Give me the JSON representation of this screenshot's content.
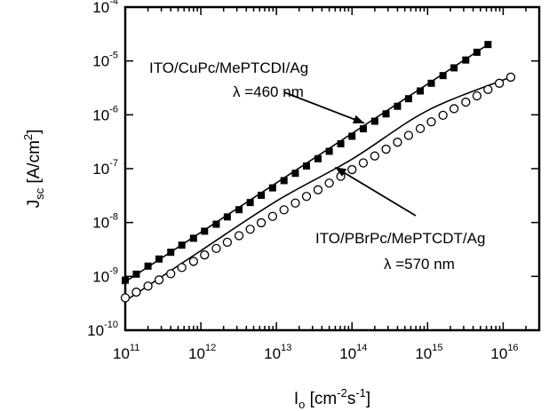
{
  "chart_data": {
    "type": "scatter",
    "xscale": "log",
    "yscale": "log",
    "xlim": [
      100000000000.0,
      3e+16
    ],
    "ylim": [
      1e-10,
      0.0001
    ],
    "grid": false,
    "xlabel": {
      "main": "I",
      "sub": "o",
      "text1": " [cm",
      "sup1": "-2",
      "text2": "s",
      "sup2": "-1",
      "text3": "]"
    },
    "ylabel": {
      "main": "J",
      "sub": "sc",
      "text1": " [A/cm",
      "sup1": "2",
      "text2": "]"
    },
    "x_ticks": [
      {
        "base": "10",
        "exp": "11",
        "value": 100000000000.0
      },
      {
        "base": "10",
        "exp": "12",
        "value": 1000000000000.0
      },
      {
        "base": "10",
        "exp": "13",
        "value": 10000000000000.0
      },
      {
        "base": "10",
        "exp": "14",
        "value": 100000000000000.0
      },
      {
        "base": "10",
        "exp": "15",
        "value": 1000000000000000.0
      },
      {
        "base": "10",
        "exp": "16",
        "value": 1e+16
      }
    ],
    "y_ticks": [
      {
        "base": "10",
        "exp": "-10",
        "value": 1e-10
      },
      {
        "base": "10",
        "exp": "-9",
        "value": 1e-09
      },
      {
        "base": "10",
        "exp": "-8",
        "value": 1e-08
      },
      {
        "base": "10",
        "exp": "-7",
        "value": 1e-07
      },
      {
        "base": "10",
        "exp": "-6",
        "value": 1e-06
      },
      {
        "base": "10",
        "exp": "-5",
        "value": 1e-05
      },
      {
        "base": "10",
        "exp": "-4",
        "value": 0.0001
      }
    ],
    "series": [
      {
        "marker": "filled-square",
        "color": "#000000",
        "x": [
          100000000000.0,
          140000000000.0,
          200000000000.0,
          280000000000.0,
          400000000000.0,
          560000000000.0,
          800000000000.0,
          1120000000000.0,
          1600000000000.0,
          2240000000000.0,
          3200000000000.0,
          4500000000000.0,
          6300000000000.0,
          8900000000000.0,
          12600000000000.0,
          17800000000000.0,
          25000000000000.0,
          35500000000000.0,
          50000000000000.0,
          71000000000000.0,
          100000000000000.0,
          141000000000000.0,
          200000000000000.0,
          282000000000000.0,
          400000000000000.0,
          560000000000000.0,
          800000000000000.0,
          1120000000000000.0,
          1600000000000000.0,
          2240000000000000.0,
          3200000000000000.0,
          4500000000000000.0,
          6300000000000000.0
        ],
        "y": [
          8.5e-10,
          1.1e-09,
          1.55e-09,
          2.1e-09,
          2.8e-09,
          3.8e-09,
          5.1e-09,
          6.9e-09,
          9.3e-09,
          1.27e-08,
          1.73e-08,
          2.35e-08,
          3.2e-08,
          4.4e-08,
          6e-08,
          8.2e-08,
          1.12e-07,
          1.53e-07,
          2.1e-07,
          2.9e-07,
          4e-07,
          5.5e-07,
          7.6e-07,
          1.04e-06,
          1.44e-06,
          1.99e-06,
          2.77e-06,
          3.85e-06,
          5.35e-06,
          7.45e-06,
          1.04e-05,
          1.45e-05,
          2.02e-05
        ],
        "fit_x": [
          90000000000.0,
          6300000000000000.0
        ],
        "fit_y": [
          7.2e-10,
          2.02e-05
        ],
        "annotation_lines": [
          "ITO/CuPc/MePTCDI/Ag",
          "λ =460 nm"
        ],
        "annotation_arrow_to": [
          145000000000000.0,
          7e-07
        ]
      },
      {
        "marker": "open-circle",
        "color": "#000000",
        "x": [
          100000000000.0,
          140000000000.0,
          200000000000.0,
          280000000000.0,
          400000000000.0,
          560000000000.0,
          800000000000.0,
          1120000000000.0,
          1600000000000.0,
          2240000000000.0,
          3200000000000.0,
          4500000000000.0,
          6300000000000.0,
          8900000000000.0,
          12600000000000.0,
          17800000000000.0,
          25000000000000.0,
          35500000000000.0,
          50000000000000.0,
          71000000000000.0,
          100000000000000.0,
          141000000000000.0,
          200000000000000.0,
          282000000000000.0,
          400000000000000.0,
          560000000000000.0,
          800000000000000.0,
          1120000000000000.0,
          1600000000000000.0,
          2240000000000000.0,
          3200000000000000.0,
          4500000000000000.0,
          6300000000000000.0,
          8900000000000000.0,
          1.26e+16
        ],
        "y": [
          4e-10,
          5.1e-10,
          6.6e-10,
          8.6e-10,
          1.12e-09,
          1.46e-09,
          1.9e-09,
          2.5e-09,
          3.3e-09,
          4.3e-09,
          5.7e-09,
          7.5e-09,
          9.9e-09,
          1.3e-08,
          1.72e-08,
          2.3e-08,
          3.05e-08,
          4.05e-08,
          5.4e-08,
          7.2e-08,
          9.6e-08,
          1.28e-07,
          1.72e-07,
          2.3e-07,
          3.1e-07,
          4.15e-07,
          5.55e-07,
          7.4e-07,
          9.8e-07,
          1.3e-06,
          1.72e-06,
          2.25e-06,
          2.95e-06,
          3.85e-06,
          5e-06
        ],
        "fit_x": [
          100000000000.0,
          1000000000000.0,
          10000000000000.0,
          100000000000000.0,
          1000000000000000.0,
          1.26e+16
        ],
        "fit_y": [
          3.5e-10,
          3e-09,
          2.5e-08,
          1.5e-07,
          1.2e-06,
          5e-06
        ],
        "annotation_lines": [
          "ITO/PBrPc/MePTCDT/Ag",
          "λ =570 nm"
        ],
        "annotation_arrow_to": [
          60000000000000.0,
          1.06e-07
        ]
      }
    ]
  }
}
